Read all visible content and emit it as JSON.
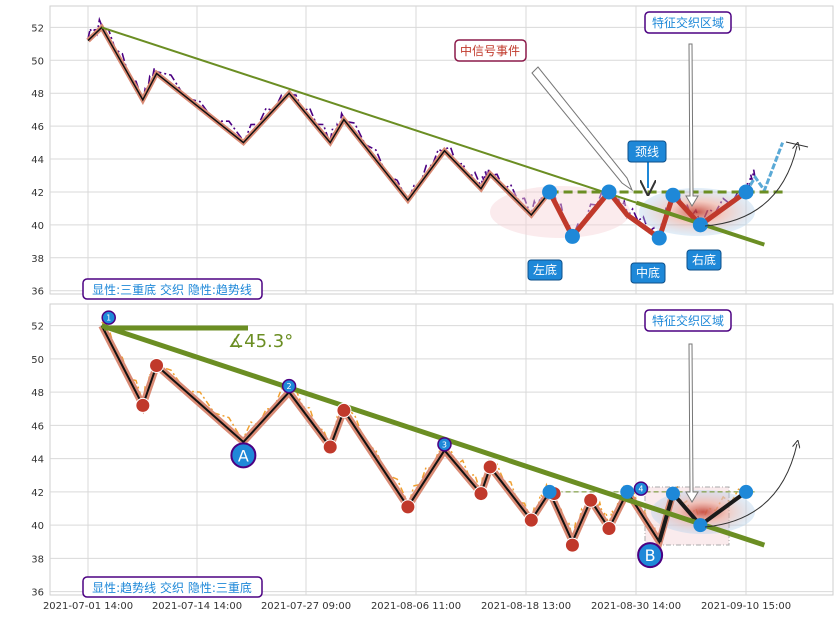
{
  "chart_data": [
    {
      "type": "line",
      "panel": "top",
      "ylim": [
        35.8,
        53.3
      ],
      "yticks": [
        36,
        38,
        40,
        42,
        44,
        46,
        48,
        50,
        52
      ],
      "xticks": [
        "2021-07-01 14:00",
        "2021-07-14 14:00",
        "2021-07-27 09:00",
        "2021-08-06 11:00",
        "2021-08-18 13:00",
        "2021-08-30 14:00",
        "2021-09-10 15:00"
      ],
      "grid": true,
      "zigzag": [
        [
          0,
          51.2
        ],
        [
          1.5,
          52
        ],
        [
          6,
          47.6
        ],
        [
          7.5,
          49.2
        ],
        [
          17,
          45
        ],
        [
          22,
          48
        ],
        [
          26.5,
          45
        ],
        [
          28,
          46.4
        ],
        [
          35,
          41.5
        ],
        [
          39,
          44.5
        ],
        [
          43,
          42.2
        ],
        [
          44,
          43.1
        ],
        [
          48.5,
          40.6
        ],
        [
          50.5,
          42
        ],
        [
          53,
          39.3
        ],
        [
          57,
          42
        ],
        [
          59,
          40.6
        ],
        [
          62.5,
          39.2
        ],
        [
          64,
          41.8
        ],
        [
          67,
          40
        ],
        [
          72,
          42
        ],
        [
          73,
          42.9
        ],
        [
          74,
          42.1
        ],
        [
          76,
          45
        ]
      ],
      "trend_line": [
        [
          1.5,
          52
        ],
        [
          74,
          38.8
        ]
      ],
      "neckline": {
        "from": [
          50.5,
          42
        ],
        "to": [
          76,
          42
        ]
      },
      "labels": {
        "signal": "中信号事件",
        "zone": "特征交织区域",
        "neck": "颈线",
        "left_bottom": "左底",
        "mid_bottom": "中底",
        "right_bottom": "右底",
        "caption": "显性:三重底 交织 隐性:趋势线"
      }
    },
    {
      "type": "line",
      "panel": "bottom",
      "ylim": [
        35.8,
        53.3
      ],
      "yticks": [
        36,
        38,
        40,
        42,
        44,
        46,
        48,
        50,
        52
      ],
      "xticks": [
        "2021-07-01 14:00",
        "2021-07-14 14:00",
        "2021-07-27 09:00",
        "2021-08-06 11:00",
        "2021-08-18 13:00",
        "2021-08-30 14:00",
        "2021-09-10 15:00"
      ],
      "grid": true,
      "zigzag": [
        [
          1.5,
          52
        ],
        [
          6,
          47.2
        ],
        [
          7.5,
          49.6
        ],
        [
          17,
          45
        ],
        [
          22,
          48
        ],
        [
          26.5,
          44.7
        ],
        [
          28,
          46.9
        ],
        [
          35,
          41.1
        ],
        [
          39,
          44.5
        ],
        [
          43,
          41.9
        ],
        [
          44,
          43.5
        ],
        [
          48.5,
          40.3
        ],
        [
          50.5,
          42
        ],
        [
          53,
          39
        ],
        [
          55,
          41.5
        ],
        [
          57,
          39.8
        ],
        [
          59,
          42
        ],
        [
          62.5,
          39
        ],
        [
          64,
          41.9
        ],
        [
          67,
          40
        ],
        [
          72,
          42
        ]
      ],
      "trend_line": [
        [
          1.5,
          52
        ],
        [
          74,
          38.8
        ]
      ],
      "angle": "∡45.3°",
      "labels": {
        "A": "A",
        "B": "B",
        "n1": "1",
        "n2": "2",
        "n3": "3",
        "n4": "4",
        "zone": "特征交织区域",
        "caption": "显性:趋势线 交织 隐性:三重底"
      }
    }
  ]
}
